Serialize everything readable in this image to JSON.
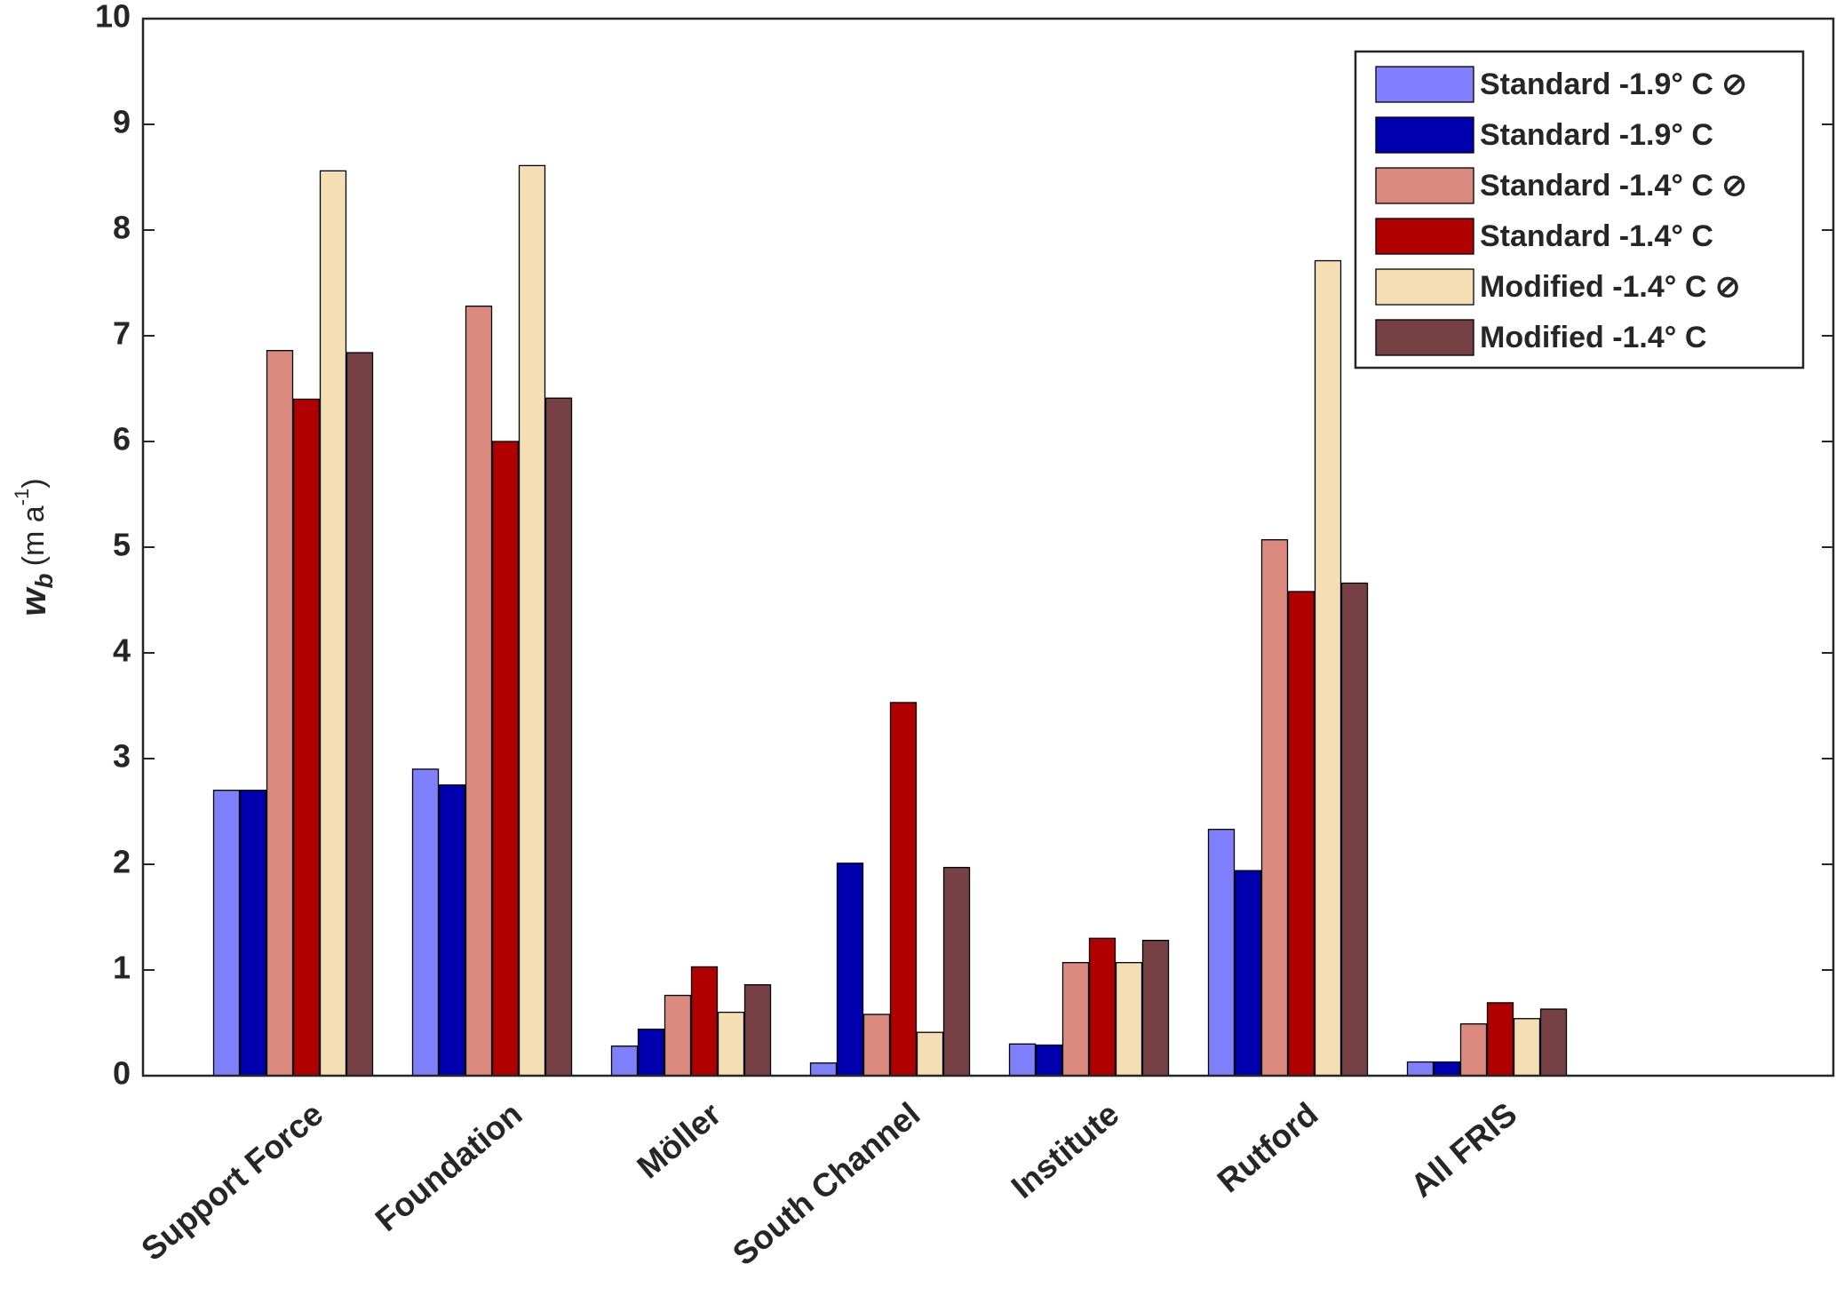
{
  "chart_data": {
    "type": "bar",
    "categories": [
      "Support Force",
      "Foundation",
      "Möller",
      "South Channel",
      "Institute",
      "Rutford",
      "All FRIS"
    ],
    "series": [
      {
        "name": "Standard -1.9° C ⊘",
        "color": "#8080ff",
        "values": [
          2.7,
          2.9,
          0.28,
          0.12,
          0.3,
          2.33,
          0.13
        ]
      },
      {
        "name": "Standard -1.9° C",
        "color": "#0000b0",
        "values": [
          2.7,
          2.75,
          0.44,
          2.01,
          0.29,
          1.94,
          0.13
        ]
      },
      {
        "name": "Standard -1.4° C ⊘",
        "color": "#dc8a80",
        "values": [
          6.86,
          7.28,
          0.76,
          0.58,
          1.07,
          5.07,
          0.49
        ]
      },
      {
        "name": "Standard -1.4° C",
        "color": "#b00000",
        "values": [
          6.4,
          6.0,
          1.03,
          3.53,
          1.3,
          4.58,
          0.69
        ]
      },
      {
        "name": "Modified -1.4° C ⊘",
        "color": "#f5deb3",
        "values": [
          8.56,
          8.61,
          0.6,
          0.41,
          1.07,
          7.71,
          0.54
        ]
      },
      {
        "name": "Modified -1.4° C",
        "color": "#774044",
        "values": [
          6.84,
          6.41,
          0.86,
          1.97,
          1.28,
          4.66,
          0.63
        ]
      }
    ],
    "ylabel_parts": [
      "w",
      "b",
      "(m a",
      "-1",
      ")"
    ],
    "ylim": [
      0,
      10
    ],
    "yticks": [
      0,
      1,
      2,
      3,
      4,
      5,
      6,
      7,
      8,
      9,
      10
    ],
    "legend": "upper right"
  }
}
